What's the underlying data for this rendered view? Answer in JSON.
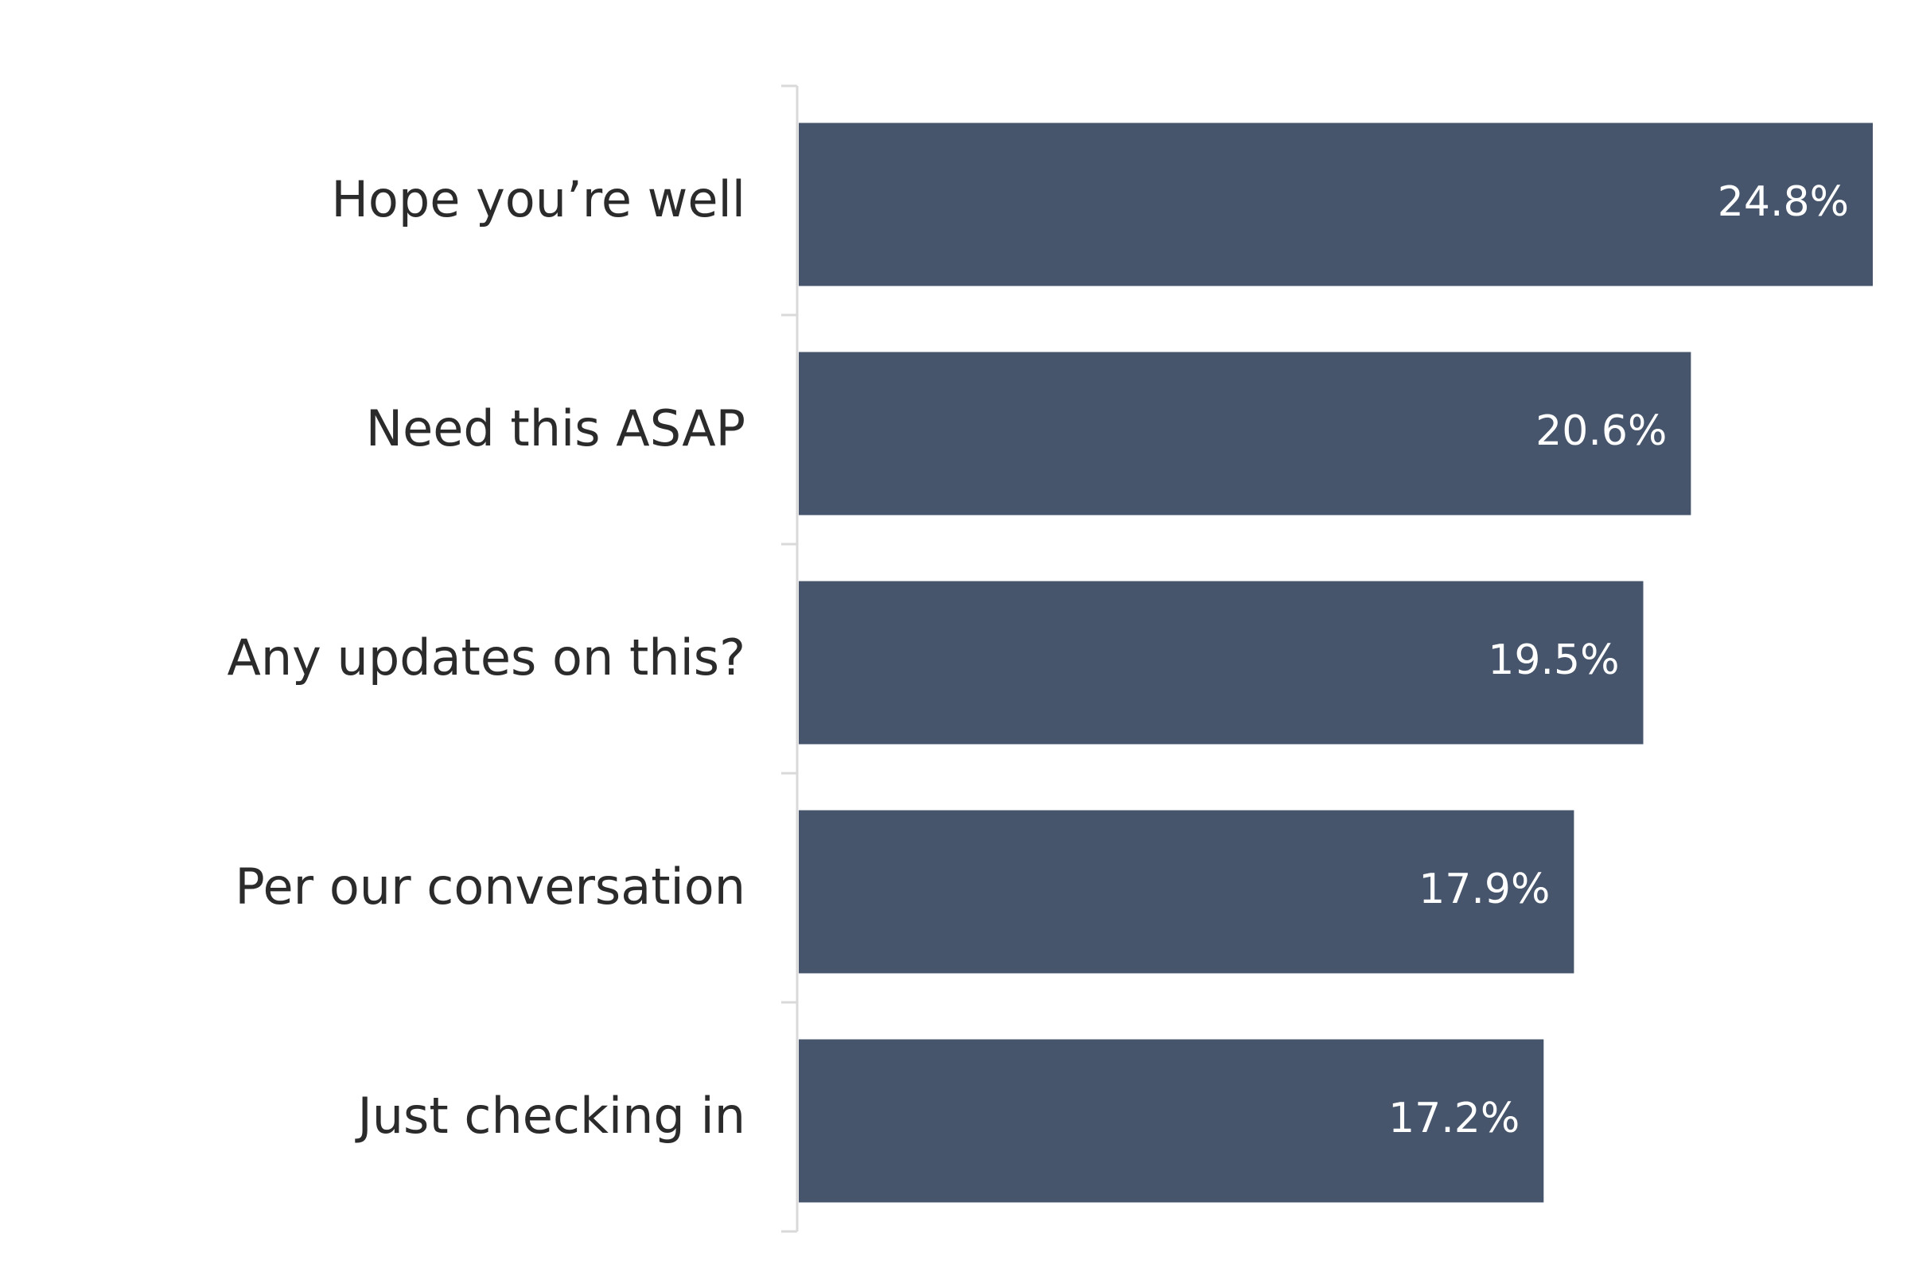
{
  "chart_data": {
    "type": "bar",
    "orientation": "horizontal",
    "categories": [
      "Hope you’re well",
      "Need this ASAP",
      "Any updates on this?",
      "Per our conversation",
      "Just checking in"
    ],
    "values": [
      24.8,
      20.6,
      19.5,
      17.9,
      17.2
    ],
    "value_labels": [
      "24.8%",
      "20.6%",
      "19.5%",
      "17.9%",
      "17.2%"
    ],
    "xlim": [
      0,
      24.8
    ],
    "title": "",
    "xlabel": "",
    "ylabel": "",
    "grid": false,
    "legend": "none"
  },
  "colors": {
    "bar": "#46556b",
    "axis": "#d9d9d9",
    "label_text": "#2b2b2b",
    "value_text": "#ffffff",
    "background": "#ffffff"
  }
}
